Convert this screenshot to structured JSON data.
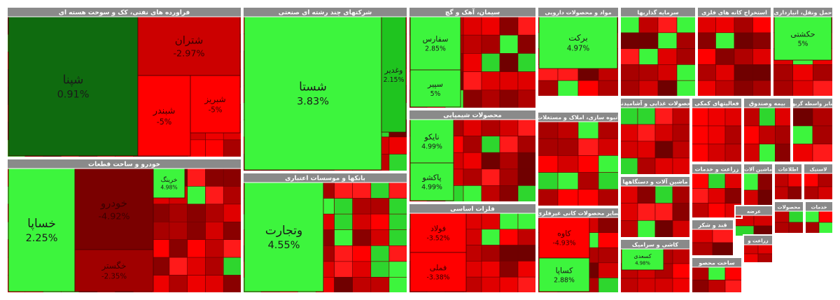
{
  "chart_data": {
    "type": "treemap",
    "colors": {
      "header": "#8a8a8a",
      "header_text": "#ffffff",
      "positive_strong": "#3df53d",
      "positive_weak": "#1fc41f",
      "negative_strong": "#ff0000",
      "negative_mid": "#cc0000",
      "negative_weak": "#a00000",
      "dark": "#7a0000",
      "label_dark": "#202020"
    },
    "sectors": [
      {
        "id": "s1",
        "title": "فراورده های نفتی، کک و سوخت هسته ای",
        "tiles": [
          {
            "id": "t1",
            "name": "شپنا",
            "change": "0.91%",
            "tone": "dark_green"
          },
          {
            "id": "t2",
            "name": "شتران",
            "change": "-2.97%",
            "tone": "negative_mid"
          },
          {
            "id": "t3",
            "name": "شبندر",
            "change": "-5%",
            "tone": "negative_strong"
          },
          {
            "id": "t4",
            "name": "شبریز",
            "change": "-5%",
            "tone": "negative_strong"
          }
        ]
      },
      {
        "id": "s2",
        "title": "شرکتهای چند رشته ای صنعتی",
        "tiles": [
          {
            "id": "t5",
            "name": "شستا",
            "change": "3.83%",
            "tone": "positive_strong"
          },
          {
            "id": "t6",
            "name": "وغدیر",
            "change": "2.15%",
            "tone": "positive_weak"
          }
        ]
      },
      {
        "id": "s3",
        "title": "سیمان، آهک و گچ",
        "tiles": [
          {
            "id": "t7",
            "name": "سفارس",
            "change": "2.85%",
            "tone": "positive_strong"
          },
          {
            "id": "t8",
            "name": "سپیر",
            "change": "5%",
            "tone": "positive_strong"
          }
        ]
      },
      {
        "id": "s4",
        "title": "مواد و محصولات دارویی",
        "tiles": [
          {
            "id": "t9",
            "name": "برکت",
            "change": "4.97%",
            "tone": "positive_strong"
          }
        ]
      },
      {
        "id": "s5",
        "title": "سرمایه گذاریها",
        "tiles": []
      },
      {
        "id": "s6",
        "title": "استخراج کانه های فلزی",
        "tiles": []
      },
      {
        "id": "s7",
        "title": "حمل ونقل، انبارداری",
        "tiles": [
          {
            "id": "t10",
            "name": "حکشتی",
            "change": "5%",
            "tone": "positive_strong"
          }
        ]
      },
      {
        "id": "s8",
        "title": "خودرو و ساخت قطعات",
        "tiles": [
          {
            "id": "t11",
            "name": "خساپا",
            "change": "2.25%",
            "tone": "positive_strong"
          },
          {
            "id": "t12",
            "name": "خودرو",
            "change": "-4.92%",
            "tone": "dark"
          },
          {
            "id": "t13",
            "name": "خگستر",
            "change": "-2.35%",
            "tone": "negative_weak"
          },
          {
            "id": "t14",
            "name": "خرینگ",
            "change": "4.98%",
            "tone": "positive_strong"
          }
        ]
      },
      {
        "id": "s9",
        "title": "بانکها و موسسات اعتباری",
        "tiles": [
          {
            "id": "t15",
            "name": "وتجارت",
            "change": "4.55%",
            "tone": "positive_strong"
          }
        ]
      },
      {
        "id": "s10",
        "title": "محصولات شیمیایی",
        "tiles": [
          {
            "id": "t16",
            "name": "نایکو",
            "change": "4.99%",
            "tone": "positive_strong"
          },
          {
            "id": "t17",
            "name": "پاکشو",
            "change": "4.99%",
            "tone": "positive_strong"
          }
        ]
      },
      {
        "id": "s11",
        "title": "انبوه سازی، املاک و مستغلات",
        "tiles": []
      },
      {
        "id": "s12",
        "title": "فلزات اساسی",
        "tiles": [
          {
            "id": "t18",
            "name": "فولاد",
            "change": "-3.52%",
            "tone": "negative_strong"
          },
          {
            "id": "t19",
            "name": "فملی",
            "change": "-3.38%",
            "tone": "negative_strong"
          }
        ]
      },
      {
        "id": "s13",
        "title": "سایر محصولات کانی غیرفلزی",
        "tiles": [
          {
            "id": "t20",
            "name": "کاوه",
            "change": "-4.93%",
            "tone": "negative_strong"
          },
          {
            "id": "t21",
            "name": "کساپا",
            "change": "2.88%",
            "tone": "positive_strong"
          }
        ]
      },
      {
        "id": "s14",
        "title": "محصولات غذایی و آشامیدنی",
        "tiles": []
      },
      {
        "id": "s15",
        "title": "فعالیتهای کمکی",
        "tiles": []
      },
      {
        "id": "s16",
        "title": "بیمه وصندوق",
        "tiles": []
      },
      {
        "id": "s17",
        "title": "سایر واسطه گریها",
        "tiles": []
      },
      {
        "id": "s18",
        "title": "ماشین آلات و دستگاهها",
        "tiles": []
      },
      {
        "id": "s19",
        "title": "زراعت و خدمات",
        "tiles": []
      },
      {
        "id": "s20",
        "title": "ماشین آلات",
        "tiles": []
      },
      {
        "id": "s21",
        "title": "اطلاعات",
        "tiles": []
      },
      {
        "id": "s22",
        "title": "لاستیک",
        "tiles": []
      },
      {
        "id": "s23",
        "title": "قند و شکر",
        "tiles": []
      },
      {
        "id": "s24",
        "title": "عرضه",
        "tiles": []
      },
      {
        "id": "s25",
        "title": "محصولات",
        "tiles": []
      },
      {
        "id": "s26",
        "title": "خدمات",
        "tiles": []
      },
      {
        "id": "s27",
        "title": "کاشی و سرامیک",
        "tiles": [
          {
            "id": "t22",
            "name": "کسعدی",
            "change": "4.98%",
            "tone": "positive_strong"
          }
        ]
      },
      {
        "id": "s28",
        "title": "ساخت محصو",
        "tiles": []
      },
      {
        "id": "s29",
        "title": "زراعت و",
        "tiles": []
      }
    ]
  }
}
